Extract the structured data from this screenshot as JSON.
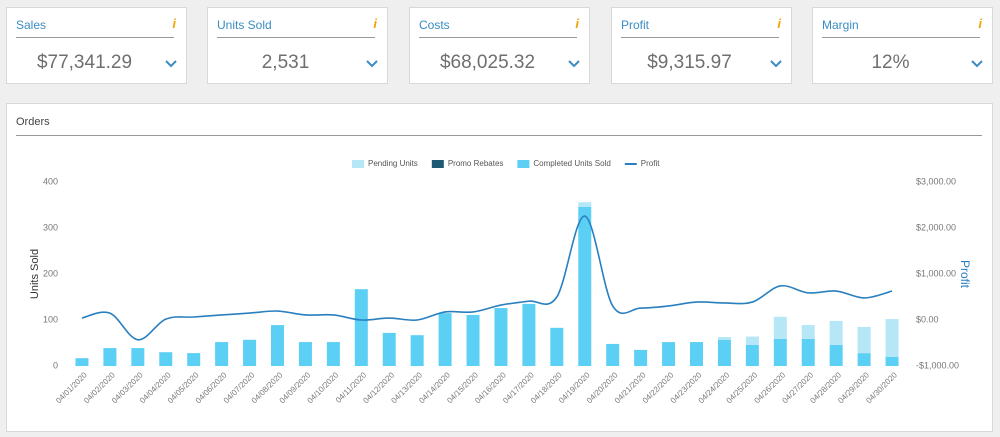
{
  "kpis": [
    {
      "title": "Sales",
      "value": "$77,341.29"
    },
    {
      "title": "Units Sold",
      "value": "2,531"
    },
    {
      "title": "Costs",
      "value": "$68,025.32"
    },
    {
      "title": "Profit",
      "value": "$9,315.97"
    },
    {
      "title": "Margin",
      "value": "12%"
    }
  ],
  "panel_title": "Orders",
  "chart_data": {
    "type": "bar",
    "categories": [
      "04/01/2020",
      "04/02/2020",
      "04/03/2020",
      "04/04/2020",
      "04/05/2020",
      "04/06/2020",
      "04/07/2020",
      "04/08/2020",
      "04/09/2020",
      "04/10/2020",
      "04/11/2020",
      "04/12/2020",
      "04/13/2020",
      "04/14/2020",
      "04/15/2020",
      "04/16/2020",
      "04/17/2020",
      "04/18/2020",
      "04/19/2020",
      "04/20/2020",
      "04/21/2020",
      "04/22/2020",
      "04/23/2020",
      "04/24/2020",
      "04/25/2020",
      "04/26/2020",
      "04/27/2020",
      "04/28/2020",
      "04/29/2020",
      "04/30/2020"
    ],
    "series": [
      {
        "name": "Completed Units Sold",
        "color": "#5ccff4",
        "values": [
          17,
          39,
          39,
          30,
          28,
          52,
          57,
          89,
          52,
          52,
          167,
          72,
          67,
          115,
          111,
          126,
          135,
          83,
          346,
          48,
          35,
          52,
          52,
          57,
          46,
          59,
          59,
          46,
          28,
          20
        ]
      },
      {
        "name": "Promo Rebates",
        "color": "#1f5a75",
        "values": [
          0,
          0,
          0,
          0,
          0,
          0,
          0,
          0,
          0,
          0,
          0,
          0,
          0,
          0,
          0,
          0,
          0,
          0,
          0,
          0,
          0,
          0,
          0,
          0,
          0,
          0,
          0,
          0,
          0,
          0
        ]
      },
      {
        "name": "Pending Units",
        "color": "#b5e7f6",
        "values": [
          0,
          0,
          0,
          0,
          0,
          0,
          0,
          0,
          0,
          0,
          0,
          0,
          0,
          0,
          0,
          0,
          0,
          0,
          10,
          0,
          0,
          0,
          0,
          6,
          18,
          48,
          30,
          52,
          57,
          82
        ]
      },
      {
        "name": "Profit",
        "color": "#2a7fbf",
        "type": "line",
        "axis": "y2",
        "values": [
          43,
          150,
          -430,
          20,
          65,
          110,
          150,
          195,
          110,
          110,
          0,
          43,
          0,
          175,
          175,
          325,
          410,
          500,
          2260,
          305,
          260,
          305,
          390,
          370,
          390,
          740,
          590,
          630,
          480,
          630
        ]
      }
    ],
    "legend_order": [
      "Pending Units",
      "Promo Rebates",
      "Completed Units Sold",
      "Profit"
    ],
    "y_label": "Units Sold",
    "y2_label": "Profit",
    "ylim": [
      0,
      400
    ],
    "yticks": [
      0,
      100,
      200,
      300,
      400
    ],
    "y2lim": [
      -1000,
      3000
    ],
    "y2ticks": [
      {
        "value": -1000,
        "label": "-$1,000.00"
      },
      {
        "value": 0,
        "label": "$0.00"
      },
      {
        "value": 1000,
        "label": "$1,000.00"
      },
      {
        "value": 2000,
        "label": "$2,000.00"
      },
      {
        "value": 3000,
        "label": "$3,000.00"
      }
    ],
    "stacked": true
  }
}
